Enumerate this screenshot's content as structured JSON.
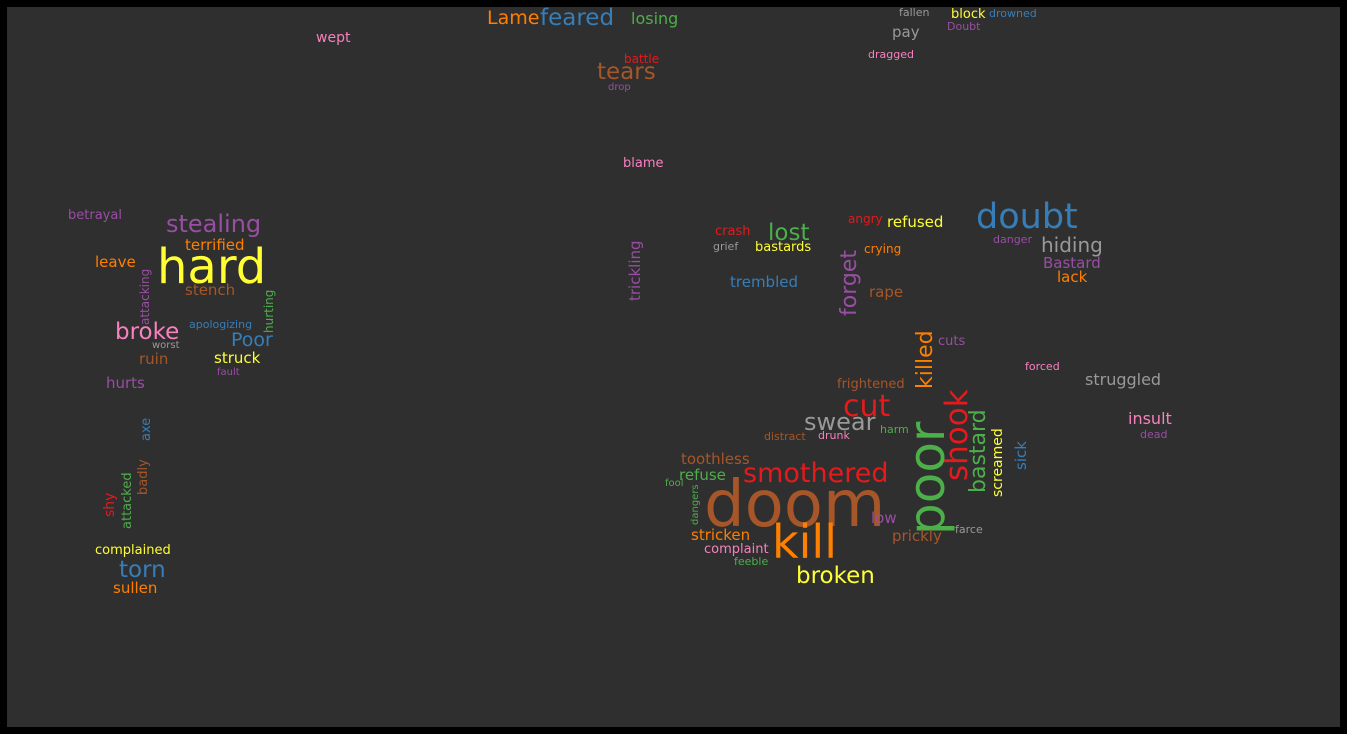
{
  "colors": {
    "background": "#2f2f2f",
    "frame": "#000000",
    "red": "#e41a1c",
    "blue": "#377eb8",
    "green": "#4daf4a",
    "purple": "#984ea3",
    "orange": "#ff7f00",
    "yellow": "#ffff33",
    "brown": "#a65628",
    "pink": "#f781bf",
    "gray": "#999999"
  },
  "words": [
    {
      "text": "Lame",
      "color": "orange"
    },
    {
      "text": "feared",
      "color": "blue"
    },
    {
      "text": "losing",
      "color": "green"
    },
    {
      "text": "fallen",
      "color": "gray"
    },
    {
      "text": "block",
      "color": "yellow"
    },
    {
      "text": "drowned",
      "color": "blue"
    },
    {
      "text": "Doubt",
      "color": "purple"
    },
    {
      "text": "pay",
      "color": "gray"
    },
    {
      "text": "dragged",
      "color": "pink"
    },
    {
      "text": "wept",
      "color": "pink"
    },
    {
      "text": "battle",
      "color": "red"
    },
    {
      "text": "tears",
      "color": "brown"
    },
    {
      "text": "drop",
      "color": "purple"
    },
    {
      "text": "blame",
      "color": "pink"
    },
    {
      "text": "betrayal",
      "color": "purple"
    },
    {
      "text": "stealing",
      "color": "purple"
    },
    {
      "text": "terrified",
      "color": "orange"
    },
    {
      "text": "hard",
      "color": "yellow"
    },
    {
      "text": "leave",
      "color": "orange"
    },
    {
      "text": "attacking",
      "color": "purple"
    },
    {
      "text": "stench",
      "color": "brown"
    },
    {
      "text": "hurting",
      "color": "green"
    },
    {
      "text": "broke",
      "color": "pink"
    },
    {
      "text": "apologizing",
      "color": "blue"
    },
    {
      "text": "Poor",
      "color": "blue"
    },
    {
      "text": "worst",
      "color": "gray"
    },
    {
      "text": "ruin",
      "color": "brown"
    },
    {
      "text": "struck",
      "color": "yellow"
    },
    {
      "text": "fault",
      "color": "purple"
    },
    {
      "text": "hurts",
      "color": "purple"
    },
    {
      "text": "axe",
      "color": "blue"
    },
    {
      "text": "badly",
      "color": "brown"
    },
    {
      "text": "attacked",
      "color": "green"
    },
    {
      "text": "shy",
      "color": "red"
    },
    {
      "text": "complained",
      "color": "yellow"
    },
    {
      "text": "torn",
      "color": "blue"
    },
    {
      "text": "sullen",
      "color": "orange"
    },
    {
      "text": "trickling",
      "color": "purple"
    },
    {
      "text": "crash",
      "color": "red"
    },
    {
      "text": "angry",
      "color": "red"
    },
    {
      "text": "refused",
      "color": "yellow"
    },
    {
      "text": "lost",
      "color": "green"
    },
    {
      "text": "grief",
      "color": "gray"
    },
    {
      "text": "bastards",
      "color": "yellow"
    },
    {
      "text": "forget",
      "color": "purple"
    },
    {
      "text": "crying",
      "color": "orange"
    },
    {
      "text": "doubt",
      "color": "blue"
    },
    {
      "text": "danger",
      "color": "purple"
    },
    {
      "text": "hiding",
      "color": "gray"
    },
    {
      "text": "Bastard",
      "color": "purple"
    },
    {
      "text": "lack",
      "color": "orange"
    },
    {
      "text": "trembled",
      "color": "blue"
    },
    {
      "text": "rape",
      "color": "brown"
    },
    {
      "text": "killed",
      "color": "orange"
    },
    {
      "text": "cuts",
      "color": "purple"
    },
    {
      "text": "forced",
      "color": "pink"
    },
    {
      "text": "frightened",
      "color": "brown"
    },
    {
      "text": "struggled",
      "color": "gray"
    },
    {
      "text": "cut",
      "color": "red"
    },
    {
      "text": "swear",
      "color": "gray"
    },
    {
      "text": "shook",
      "color": "red"
    },
    {
      "text": "bastard",
      "color": "green"
    },
    {
      "text": "insult",
      "color": "pink"
    },
    {
      "text": "harm",
      "color": "green"
    },
    {
      "text": "dead",
      "color": "purple"
    },
    {
      "text": "distract",
      "color": "brown"
    },
    {
      "text": "drunk",
      "color": "pink"
    },
    {
      "text": "poor",
      "color": "green"
    },
    {
      "text": "screamed",
      "color": "yellow"
    },
    {
      "text": "sick",
      "color": "blue"
    },
    {
      "text": "toothless",
      "color": "brown"
    },
    {
      "text": "smothered",
      "color": "red"
    },
    {
      "text": "refuse",
      "color": "green"
    },
    {
      "text": "fool",
      "color": "green"
    },
    {
      "text": "doom",
      "color": "brown"
    },
    {
      "text": "dangers",
      "color": "green"
    },
    {
      "text": "low",
      "color": "purple"
    },
    {
      "text": "farce",
      "color": "gray"
    },
    {
      "text": "kill",
      "color": "orange"
    },
    {
      "text": "stricken",
      "color": "orange"
    },
    {
      "text": "prickly",
      "color": "brown"
    },
    {
      "text": "complaint",
      "color": "pink"
    },
    {
      "text": "feeble",
      "color": "green"
    },
    {
      "text": "broken",
      "color": "yellow"
    }
  ]
}
